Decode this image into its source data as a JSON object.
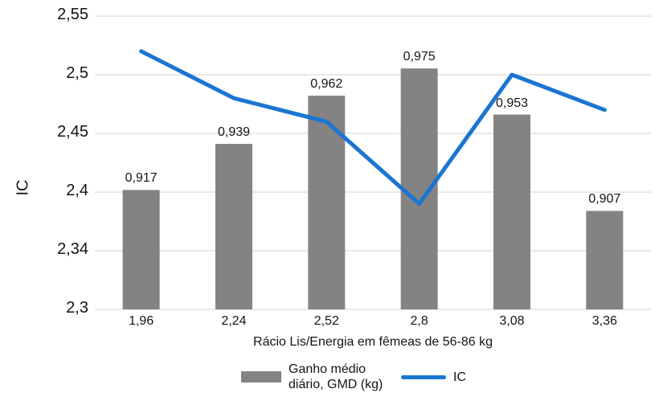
{
  "chart_data": {
    "type": "combo",
    "title": "",
    "categories": [
      "1,96",
      "2,24",
      "2,52",
      "2,8",
      "3,08",
      "3,36"
    ],
    "series": [
      {
        "name": "Ganho médio diário, GMD (kg)",
        "type": "bar",
        "axis": "hidden-secondary",
        "values": [
          0.917,
          0.939,
          0.962,
          0.975,
          0.953,
          0.907
        ],
        "value_labels": [
          "0,917",
          "0,939",
          "0,962",
          "0,975",
          "0,953",
          "0,907"
        ],
        "color": "#838383"
      },
      {
        "name": "IC",
        "type": "line",
        "axis": "primary",
        "values": [
          2.52,
          2.48,
          2.46,
          2.39,
          2.5,
          2.47
        ],
        "color": "#1b75d1"
      }
    ],
    "xlabel": "Rácio Lis/Energia em fêmeas de 56-86 kg",
    "ylabel": "IC",
    "ylim": [
      2.3,
      2.55
    ],
    "y2lim_hidden": [
      0.86,
      1.0
    ],
    "yticks_bottom_to_top": [
      "2,3",
      "2,34",
      "2,4",
      "2,45",
      "2,5",
      "2,55"
    ],
    "grid": true,
    "legend_position": "bottom",
    "colors": {
      "grid": "#d9d9d9",
      "text": "#141414",
      "background": "#ffffff"
    }
  }
}
